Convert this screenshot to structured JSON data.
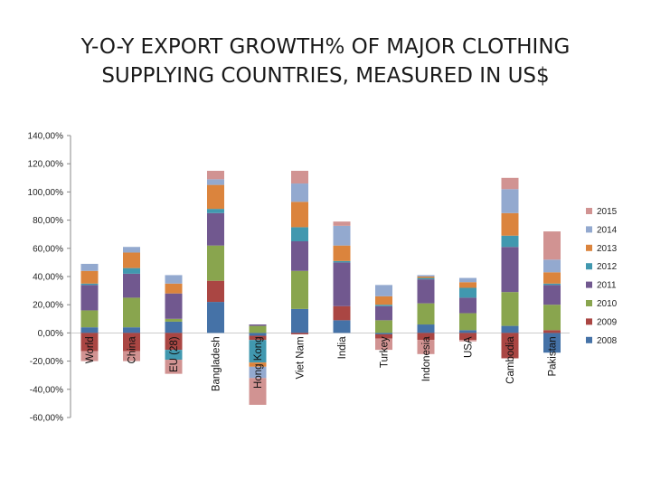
{
  "chart_data": {
    "type": "bar",
    "stacked": true,
    "title_lines": [
      "Y-O-Y EXPORT GROWTH% OF MAJOR CLOTHING",
      "SUPPLYING COUNTRIES, MEASURED IN US$"
    ],
    "ylim": [
      -60,
      140
    ],
    "yticks": [
      "140,00%",
      "120,00%",
      "100,00%",
      "80,00%",
      "60,00%",
      "40,00%",
      "20,00%",
      "0,00%",
      "-20,00%",
      "-40,00%",
      "-60,00%"
    ],
    "ytick_values": [
      140,
      120,
      100,
      80,
      60,
      40,
      20,
      0,
      -20,
      -40,
      -60
    ],
    "grid": false,
    "legend_position": "right",
    "categories": [
      "World",
      "China",
      "EU (28)",
      "Bangladesh",
      "Hong Kong",
      "Viet Nam",
      "India",
      "Turkey",
      "Indonesia",
      "USA",
      "Cambodia",
      "Pakistan"
    ],
    "series": [
      {
        "name": "2008",
        "color": "#4572a7",
        "values": [
          4,
          4,
          8,
          22,
          -2,
          17,
          9,
          -1,
          6,
          2,
          5,
          -14
        ]
      },
      {
        "name": "2009",
        "color": "#aa4643",
        "values": [
          -13,
          -13,
          -12,
          15,
          -3,
          -1,
          10,
          -3,
          -5,
          -5,
          -18,
          2
        ]
      },
      {
        "name": "2010",
        "color": "#89a54e",
        "values": [
          12,
          21,
          2,
          25,
          5,
          27,
          0,
          9,
          15,
          12,
          24,
          18
        ]
      },
      {
        "name": "2011",
        "color": "#71588f",
        "values": [
          18,
          17,
          18,
          23,
          1,
          21,
          31,
          10,
          17,
          11,
          32,
          14
        ]
      },
      {
        "name": "2012",
        "color": "#4198af",
        "values": [
          1,
          4,
          -7,
          3,
          -16,
          10,
          1,
          1,
          1,
          7,
          8,
          1
        ]
      },
      {
        "name": "2013",
        "color": "#db843d",
        "values": [
          9,
          11,
          7,
          17,
          -3,
          18,
          11,
          6,
          1,
          4,
          16,
          8
        ]
      },
      {
        "name": "2014",
        "color": "#93a9cf",
        "values": [
          5,
          4,
          6,
          4,
          -8,
          13,
          14,
          8,
          1,
          3,
          17,
          9
        ]
      },
      {
        "name": "2015",
        "color": "#d19392",
        "values": [
          -7,
          -7,
          -10,
          6,
          -19,
          9,
          3,
          -8,
          -10,
          -1,
          8,
          20
        ]
      }
    ]
  }
}
